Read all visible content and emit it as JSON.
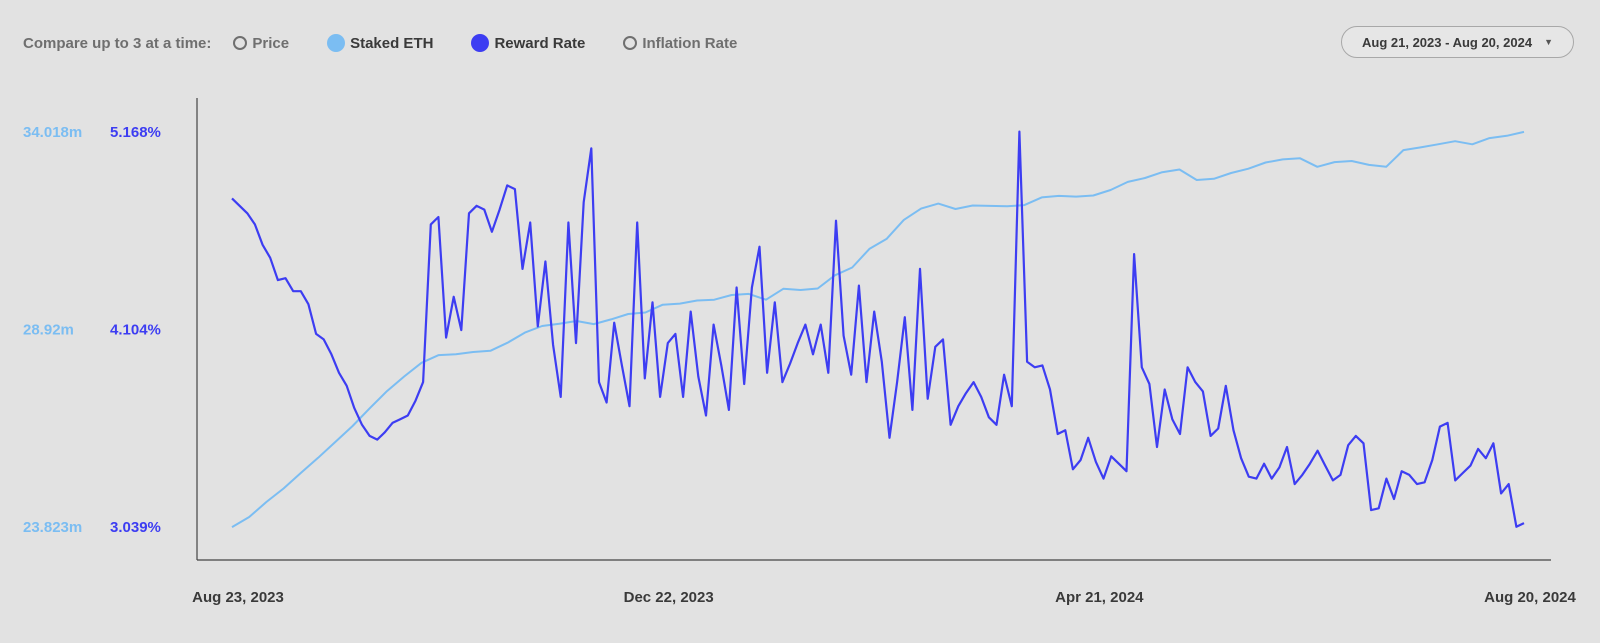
{
  "toolbar": {
    "compare_label": "Compare up to 3 at a time:",
    "toggles": [
      {
        "label": "Price",
        "active": false
      },
      {
        "label": "Staked ETH",
        "active": true,
        "color": "#7bbdf2"
      },
      {
        "label": "Reward Rate",
        "active": true,
        "color": "#3d3df2"
      },
      {
        "label": "Inflation Rate",
        "active": false
      }
    ],
    "date_range": "Aug 21, 2023 - Aug 20, 2024"
  },
  "chart_data": {
    "type": "line",
    "x_ticks": [
      "Aug 23, 2023",
      "Dec 22, 2023",
      "Apr 21, 2024",
      "Aug 20, 2024"
    ],
    "x_range": [
      "2023-08-23",
      "2024-08-20"
    ],
    "axes": {
      "staked": {
        "ticks": [
          "34.018m",
          "28.92m",
          "23.823m"
        ],
        "range": [
          23.823,
          34.018
        ],
        "color": "#7bbdf2"
      },
      "reward": {
        "ticks": [
          "5.168%",
          "4.104%",
          "3.039%"
        ],
        "range": [
          3.039,
          5.168
        ],
        "color": "#3d3df2"
      }
    },
    "series": [
      {
        "name": "Staked ETH",
        "unit": "m",
        "color": "#7bbdf2",
        "values": [
          23.82,
          24.08,
          24.47,
          24.82,
          25.22,
          25.61,
          26.02,
          26.43,
          26.89,
          27.33,
          27.71,
          28.06,
          28.26,
          28.28,
          28.34,
          28.37,
          28.58,
          28.84,
          29.01,
          29.07,
          29.14,
          29.06,
          29.18,
          29.32,
          29.36,
          29.56,
          29.59,
          29.67,
          29.69,
          29.81,
          29.84,
          29.69,
          29.97,
          29.94,
          29.98,
          30.32,
          30.52,
          31.0,
          31.26,
          31.75,
          32.04,
          32.17,
          32.03,
          32.12,
          32.11,
          32.1,
          32.13,
          32.33,
          32.37,
          32.35,
          32.38,
          32.52,
          32.73,
          32.83,
          32.98,
          33.05,
          32.78,
          32.81,
          32.96,
          33.07,
          33.23,
          33.31,
          33.34,
          33.12,
          33.24,
          33.27,
          33.17,
          33.12,
          33.55,
          33.62,
          33.7,
          33.78,
          33.7,
          33.86,
          33.92,
          34.02
        ]
      },
      {
        "name": "Reward Rate",
        "unit": "%",
        "color": "#3d3df2",
        "values": [
          4.81,
          4.77,
          4.73,
          4.67,
          4.56,
          4.49,
          4.37,
          4.38,
          4.31,
          4.31,
          4.24,
          4.08,
          4.05,
          3.97,
          3.87,
          3.8,
          3.68,
          3.59,
          3.53,
          3.51,
          3.55,
          3.6,
          3.62,
          3.64,
          3.72,
          3.82,
          4.67,
          4.71,
          4.06,
          4.28,
          4.1,
          4.73,
          4.77,
          4.75,
          4.63,
          4.75,
          4.88,
          4.86,
          4.43,
          4.68,
          4.12,
          4.47,
          4.02,
          3.74,
          4.68,
          4.03,
          4.79,
          5.08,
          3.82,
          3.71,
          4.14,
          3.91,
          3.69,
          4.68,
          3.84,
          4.25,
          3.74,
          4.03,
          4.08,
          3.74,
          4.2,
          3.85,
          3.64,
          4.13,
          3.91,
          3.67,
          4.33,
          3.81,
          4.33,
          4.55,
          3.87,
          4.25,
          3.82,
          3.92,
          4.03,
          4.13,
          3.97,
          4.13,
          3.87,
          4.69,
          4.07,
          3.86,
          4.34,
          3.82,
          4.2,
          3.93,
          3.52,
          3.82,
          4.17,
          3.67,
          4.43,
          3.73,
          4.01,
          4.05,
          3.59,
          3.69,
          3.76,
          3.82,
          3.74,
          3.63,
          3.59,
          3.86,
          3.69,
          5.17,
          3.93,
          3.9,
          3.91,
          3.78,
          3.54,
          3.56,
          3.35,
          3.4,
          3.52,
          3.39,
          3.3,
          3.42,
          3.38,
          3.34,
          4.51,
          3.9,
          3.81,
          3.47,
          3.78,
          3.62,
          3.54,
          3.9,
          3.82,
          3.77,
          3.53,
          3.57,
          3.8,
          3.56,
          3.41,
          3.31,
          3.3,
          3.38,
          3.3,
          3.36,
          3.47,
          3.27,
          3.32,
          3.38,
          3.45,
          3.37,
          3.29,
          3.32,
          3.48,
          3.53,
          3.49,
          3.13,
          3.14,
          3.3,
          3.19,
          3.34,
          3.32,
          3.27,
          3.28,
          3.4,
          3.58,
          3.6,
          3.29,
          3.33,
          3.37,
          3.46,
          3.41,
          3.49,
          3.22,
          3.27,
          3.04,
          3.06
        ]
      }
    ]
  }
}
